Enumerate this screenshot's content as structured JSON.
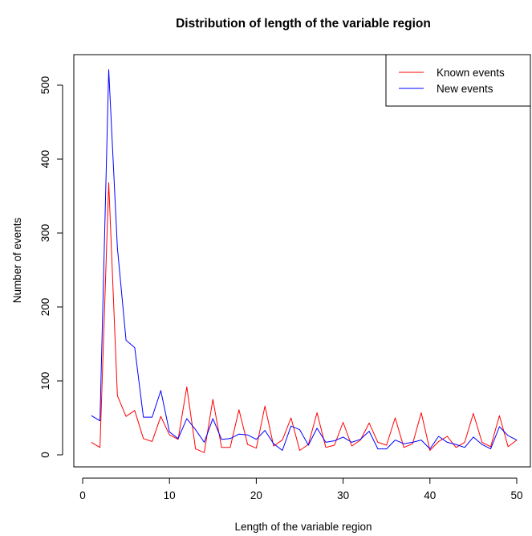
{
  "chart_data": {
    "type": "line",
    "title": "Distribution of length of the variable region",
    "xlabel": "Length of the variable region",
    "ylabel": "Number of events",
    "xlim": [
      0,
      50
    ],
    "ylim": [
      0,
      500
    ],
    "xticks": [
      0,
      10,
      20,
      30,
      40,
      50
    ],
    "yticks": [
      0,
      100,
      200,
      300,
      400,
      500
    ],
    "grid": false,
    "legend_position": "top-right",
    "x": [
      1,
      2,
      3,
      4,
      5,
      6,
      7,
      8,
      9,
      10,
      11,
      12,
      13,
      14,
      15,
      16,
      17,
      18,
      19,
      20,
      21,
      22,
      23,
      24,
      25,
      26,
      27,
      28,
      29,
      30,
      31,
      32,
      33,
      34,
      35,
      36,
      37,
      38,
      39,
      40,
      41,
      42,
      43,
      44,
      45,
      46,
      47,
      48,
      49,
      50
    ],
    "series": [
      {
        "name": "Known events",
        "color": "#ff0000",
        "values": [
          17,
          10,
          368,
          80,
          52,
          60,
          22,
          18,
          52,
          27,
          21,
          92,
          8,
          3,
          75,
          10,
          10,
          61,
          14,
          9,
          66,
          12,
          20,
          50,
          6,
          14,
          57,
          10,
          13,
          44,
          12,
          20,
          43,
          17,
          13,
          50,
          10,
          15,
          57,
          6,
          18,
          25,
          10,
          17,
          56,
          17,
          11,
          53,
          11,
          20
        ]
      },
      {
        "name": "New events",
        "color": "#0000ff",
        "values": [
          53,
          46,
          521,
          280,
          155,
          145,
          51,
          51,
          87,
          31,
          22,
          49,
          34,
          17,
          49,
          21,
          22,
          28,
          27,
          21,
          33,
          15,
          6,
          39,
          34,
          13,
          36,
          17,
          19,
          24,
          17,
          21,
          32,
          8,
          8,
          20,
          15,
          17,
          20,
          8,
          25,
          17,
          14,
          10,
          24,
          14,
          8,
          38,
          26,
          20
        ]
      }
    ]
  }
}
